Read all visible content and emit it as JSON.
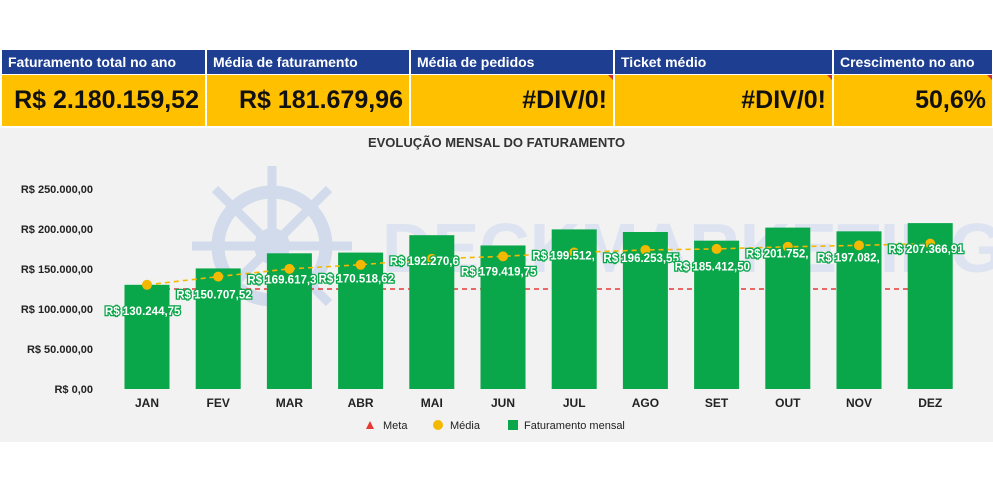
{
  "kpis": [
    {
      "label": "Faturamento total no ano",
      "value": "R$ 2.180.159,52",
      "marker": false
    },
    {
      "label": "Média de faturamento",
      "value": "R$ 181.679,96",
      "marker": false
    },
    {
      "label": "Média de pedidos",
      "value": "#DIV/0!",
      "marker": true
    },
    {
      "label": "Ticket médio",
      "value": "#DIV/0!",
      "marker": true
    },
    {
      "label": "Crescimento no ano",
      "value": "50,6%",
      "marker": true
    }
  ],
  "watermark": "DECKMARKETING",
  "colors": {
    "bar": "#0aa64a",
    "meta": "#e53935",
    "media": "#f5b800",
    "header": "#1e3f91",
    "value_bg": "#ffc000"
  },
  "chart_data": {
    "type": "bar",
    "title": "EVOLUÇÃO MENSAL DO FATURAMENTO",
    "categories": [
      "JAN",
      "FEV",
      "MAR",
      "ABR",
      "MAI",
      "JUN",
      "JUL",
      "AGO",
      "SET",
      "OUT",
      "NOV",
      "DEZ"
    ],
    "series": [
      {
        "name": "Faturamento mensal",
        "type": "bar",
        "values": [
          130244.75,
          150707.52,
          169617.3,
          170518.62,
          192270.6,
          179419.75,
          199512.5,
          196253.55,
          185412.5,
          201752.5,
          197082.5,
          207366.91
        ],
        "labels": [
          "R$ 130.244,75",
          "R$ 150.707,52",
          "R$ 169.617,3",
          "R$ 170.518,62",
          "R$ 192.270,6",
          "R$ 179.419,75",
          "R$ 199.512,",
          "R$ 196.253,55",
          "R$ 185.412,50",
          "R$ 201.752,",
          "R$ 197.082,",
          "R$ 207.366,91"
        ]
      },
      {
        "name": "Média",
        "type": "line",
        "values": [
          130244.75,
          140476.14,
          150189.86,
          155272.05,
          162671.6,
          165796.29,
          170612.89,
          173817.97,
          175106.26,
          177770.89,
          179526.58,
          181679.96
        ]
      },
      {
        "name": "Meta",
        "type": "line",
        "values": [
          125000,
          125000,
          125000,
          125000,
          125000,
          125000,
          125000,
          125000,
          125000,
          125000,
          125000,
          125000
        ]
      }
    ],
    "ylim": [
      0,
      250000
    ],
    "yticks": [
      {
        "value": 0,
        "label": "R$ 0,00"
      },
      {
        "value": 50000,
        "label": "R$ 50.000,00"
      },
      {
        "value": 100000,
        "label": "R$ 100.000,00"
      },
      {
        "value": 150000,
        "label": "R$ 150.000,00"
      },
      {
        "value": 200000,
        "label": "R$ 200.000,00"
      },
      {
        "value": 250000,
        "label": "R$ 250.000,00"
      }
    ],
    "legend": [
      "Meta",
      "Média",
      "Faturamento mensal"
    ],
    "legend_position": "bottom"
  }
}
